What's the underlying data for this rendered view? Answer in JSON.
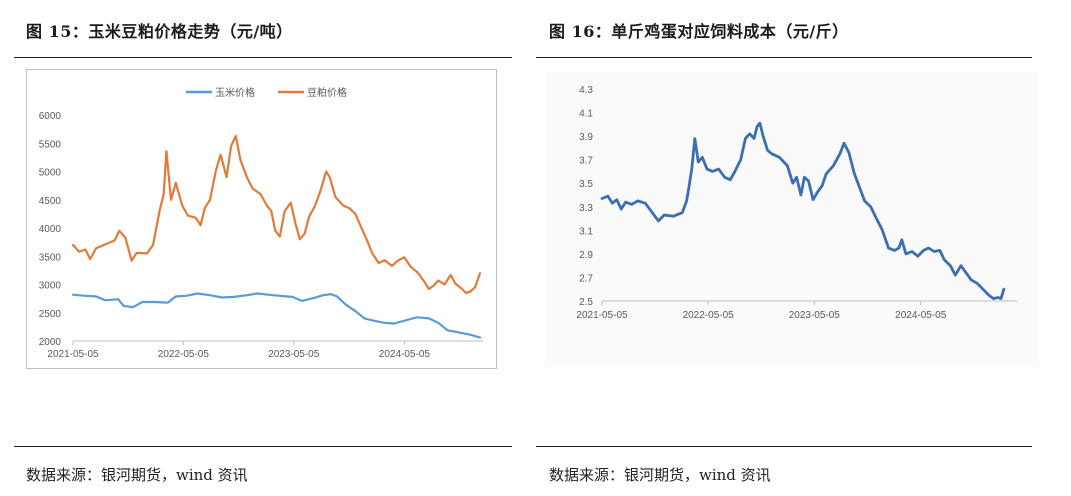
{
  "left": {
    "title": "图 15：玉米豆粕价格走势（元/吨）",
    "source": "数据来源：银河期货，wind 资讯"
  },
  "right": {
    "title": "图 16：单斤鸡蛋对应饲料成本（元/斤）",
    "source": "数据来源：银河期货，wind 资讯"
  },
  "colors": {
    "corn": "#5b9bd5",
    "soymeal": "#e07b39",
    "egg_cost": "#3c6eb0",
    "axis": "#bfbfbf",
    "tick_text": "#595959"
  },
  "chart_data": [
    {
      "type": "line",
      "legend_position": "top-center",
      "grid": false,
      "ylim": [
        2000,
        6000
      ],
      "y_ticks": [
        "2000",
        "2500",
        "3000",
        "3500",
        "4000",
        "4500",
        "5000",
        "5500",
        "6000"
      ],
      "x_ticks": [
        "2021-05-05",
        "2022-05-05",
        "2023-05-05",
        "2024-05-05"
      ],
      "x_range": [
        "2021-05-05",
        "2025-01-20"
      ],
      "series": [
        {
          "name": "玉米价格",
          "color": "#5b9bd5",
          "points": [
            [
              "2021-05-05",
              2820
            ],
            [
              "2021-06-15",
              2800
            ],
            [
              "2021-07-20",
              2790
            ],
            [
              "2021-08-20",
              2720
            ],
            [
              "2021-10-01",
              2740
            ],
            [
              "2021-10-20",
              2620
            ],
            [
              "2021-11-20",
              2600
            ],
            [
              "2021-12-20",
              2690
            ],
            [
              "2022-02-01",
              2690
            ],
            [
              "2022-03-15",
              2680
            ],
            [
              "2022-04-10",
              2790
            ],
            [
              "2022-05-15",
              2800
            ],
            [
              "2022-06-20",
              2840
            ],
            [
              "2022-08-01",
              2810
            ],
            [
              "2022-09-10",
              2770
            ],
            [
              "2022-10-20",
              2780
            ],
            [
              "2022-12-01",
              2810
            ],
            [
              "2023-01-05",
              2840
            ],
            [
              "2023-02-10",
              2820
            ],
            [
              "2023-03-20",
              2800
            ],
            [
              "2023-05-01",
              2780
            ],
            [
              "2023-06-01",
              2710
            ],
            [
              "2023-07-10",
              2760
            ],
            [
              "2023-08-10",
              2810
            ],
            [
              "2023-09-05",
              2830
            ],
            [
              "2023-09-25",
              2790
            ],
            [
              "2023-10-25",
              2640
            ],
            [
              "2023-11-25",
              2530
            ],
            [
              "2023-12-25",
              2400
            ],
            [
              "2024-01-25",
              2360
            ],
            [
              "2024-03-01",
              2320
            ],
            [
              "2024-04-01",
              2310
            ],
            [
              "2024-05-05",
              2360
            ],
            [
              "2024-06-15",
              2420
            ],
            [
              "2024-07-25",
              2400
            ],
            [
              "2024-08-25",
              2320
            ],
            [
              "2024-09-25",
              2190
            ],
            [
              "2024-10-25",
              2160
            ],
            [
              "2024-12-10",
              2110
            ],
            [
              "2025-01-10",
              2060
            ]
          ]
        },
        {
          "name": "豆粕价格",
          "color": "#e07b39",
          "points": [
            [
              "2021-05-05",
              3700
            ],
            [
              "2021-05-25",
              3580
            ],
            [
              "2021-06-15",
              3620
            ],
            [
              "2021-07-01",
              3450
            ],
            [
              "2021-07-20",
              3640
            ],
            [
              "2021-08-20",
              3710
            ],
            [
              "2021-09-20",
              3780
            ],
            [
              "2021-10-05",
              3950
            ],
            [
              "2021-10-25",
              3830
            ],
            [
              "2021-11-15",
              3420
            ],
            [
              "2021-12-01",
              3560
            ],
            [
              "2022-01-05",
              3550
            ],
            [
              "2022-01-25",
              3700
            ],
            [
              "2022-02-15",
              4300
            ],
            [
              "2022-03-01",
              4600
            ],
            [
              "2022-03-10",
              5360
            ],
            [
              "2022-03-25",
              4500
            ],
            [
              "2022-04-10",
              4800
            ],
            [
              "2022-05-01",
              4400
            ],
            [
              "2022-05-20",
              4220
            ],
            [
              "2022-06-15",
              4180
            ],
            [
              "2022-07-01",
              4050
            ],
            [
              "2022-07-15",
              4350
            ],
            [
              "2022-08-01",
              4500
            ],
            [
              "2022-08-20",
              5000
            ],
            [
              "2022-09-05",
              5300
            ],
            [
              "2022-09-25",
              4900
            ],
            [
              "2022-10-10",
              5450
            ],
            [
              "2022-10-25",
              5630
            ],
            [
              "2022-11-10",
              5200
            ],
            [
              "2022-12-01",
              4900
            ],
            [
              "2022-12-20",
              4700
            ],
            [
              "2023-01-15",
              4600
            ],
            [
              "2023-02-05",
              4400
            ],
            [
              "2023-02-20",
              4300
            ],
            [
              "2023-03-05",
              3950
            ],
            [
              "2023-03-20",
              3850
            ],
            [
              "2023-04-05",
              4300
            ],
            [
              "2023-04-25",
              4450
            ],
            [
              "2023-05-10",
              4100
            ],
            [
              "2023-05-25",
              3800
            ],
            [
              "2023-06-10",
              3900
            ],
            [
              "2023-06-25",
              4200
            ],
            [
              "2023-07-15",
              4400
            ],
            [
              "2023-08-01",
              4650
            ],
            [
              "2023-08-20",
              5000
            ],
            [
              "2023-09-01",
              4900
            ],
            [
              "2023-09-20",
              4550
            ],
            [
              "2023-10-15",
              4400
            ],
            [
              "2023-11-05",
              4350
            ],
            [
              "2023-11-25",
              4250
            ],
            [
              "2023-12-15",
              4000
            ],
            [
              "2024-01-01",
              3800
            ],
            [
              "2024-01-20",
              3550
            ],
            [
              "2024-02-10",
              3380
            ],
            [
              "2024-03-01",
              3430
            ],
            [
              "2024-03-25",
              3330
            ],
            [
              "2024-04-15",
              3430
            ],
            [
              "2024-05-05",
              3480
            ],
            [
              "2024-05-25",
              3320
            ],
            [
              "2024-06-20",
              3200
            ],
            [
              "2024-07-10",
              3050
            ],
            [
              "2024-07-25",
              2920
            ],
            [
              "2024-08-10",
              2980
            ],
            [
              "2024-08-25",
              3070
            ],
            [
              "2024-09-15",
              3000
            ],
            [
              "2024-10-05",
              3170
            ],
            [
              "2024-10-20",
              3020
            ],
            [
              "2024-11-10",
              2930
            ],
            [
              "2024-11-25",
              2850
            ],
            [
              "2024-12-10",
              2880
            ],
            [
              "2024-12-25",
              2950
            ],
            [
              "2025-01-10",
              3200
            ]
          ]
        }
      ]
    },
    {
      "type": "line",
      "legend_position": "none",
      "grid": false,
      "ylim": [
        2.5,
        4.3
      ],
      "y_ticks": [
        "2.5",
        "2.7",
        "2.9",
        "3.1",
        "3.3",
        "3.5",
        "3.7",
        "3.9",
        "4.1",
        "4.3"
      ],
      "x_ticks": [
        "2021-05-05",
        "2022-05-05",
        "2023-05-05",
        "2024-05-05"
      ],
      "x_range": [
        "2021-05-05",
        "2025-04-01"
      ],
      "series": [
        {
          "color": "#3c6eb0",
          "points": [
            [
              "2021-05-05",
              3.37
            ],
            [
              "2021-05-25",
              3.39
            ],
            [
              "2021-06-10",
              3.33
            ],
            [
              "2021-06-25",
              3.36
            ],
            [
              "2021-07-10",
              3.28
            ],
            [
              "2021-07-25",
              3.34
            ],
            [
              "2021-08-15",
              3.32
            ],
            [
              "2021-09-05",
              3.35
            ],
            [
              "2021-10-01",
              3.33
            ],
            [
              "2021-10-25",
              3.25
            ],
            [
              "2021-11-15",
              3.18
            ],
            [
              "2021-12-05",
              3.23
            ],
            [
              "2022-01-05",
              3.22
            ],
            [
              "2022-02-05",
              3.25
            ],
            [
              "2022-02-20",
              3.35
            ],
            [
              "2022-03-01",
              3.48
            ],
            [
              "2022-03-10",
              3.63
            ],
            [
              "2022-03-20",
              3.88
            ],
            [
              "2022-04-01",
              3.68
            ],
            [
              "2022-04-15",
              3.72
            ],
            [
              "2022-05-01",
              3.62
            ],
            [
              "2022-05-20",
              3.6
            ],
            [
              "2022-06-10",
              3.62
            ],
            [
              "2022-07-01",
              3.55
            ],
            [
              "2022-07-20",
              3.53
            ],
            [
              "2022-08-05",
              3.6
            ],
            [
              "2022-08-25",
              3.7
            ],
            [
              "2022-09-10",
              3.88
            ],
            [
              "2022-09-25",
              3.92
            ],
            [
              "2022-10-10",
              3.88
            ],
            [
              "2022-10-20",
              3.98
            ],
            [
              "2022-10-30",
              4.01
            ],
            [
              "2022-11-10",
              3.9
            ],
            [
              "2022-11-25",
              3.78
            ],
            [
              "2022-12-10",
              3.75
            ],
            [
              "2023-01-05",
              3.72
            ],
            [
              "2023-02-01",
              3.65
            ],
            [
              "2023-02-20",
              3.5
            ],
            [
              "2023-03-05",
              3.55
            ],
            [
              "2023-03-20",
              3.4
            ],
            [
              "2023-04-01",
              3.55
            ],
            [
              "2023-04-15",
              3.52
            ],
            [
              "2023-05-01",
              3.36
            ],
            [
              "2023-05-15",
              3.42
            ],
            [
              "2023-06-01",
              3.48
            ],
            [
              "2023-06-15",
              3.58
            ],
            [
              "2023-07-10",
              3.65
            ],
            [
              "2023-08-01",
              3.75
            ],
            [
              "2023-08-15",
              3.84
            ],
            [
              "2023-09-01",
              3.76
            ],
            [
              "2023-09-20",
              3.58
            ],
            [
              "2023-10-10",
              3.45
            ],
            [
              "2023-10-25",
              3.35
            ],
            [
              "2023-11-15",
              3.3
            ],
            [
              "2023-12-05",
              3.2
            ],
            [
              "2023-12-25",
              3.1
            ],
            [
              "2024-01-15",
              2.95
            ],
            [
              "2024-02-05",
              2.93
            ],
            [
              "2024-02-20",
              2.95
            ],
            [
              "2024-03-01",
              3.02
            ],
            [
              "2024-03-15",
              2.9
            ],
            [
              "2024-04-05",
              2.92
            ],
            [
              "2024-04-25",
              2.88
            ],
            [
              "2024-05-15",
              2.93
            ],
            [
              "2024-06-01",
              2.95
            ],
            [
              "2024-06-20",
              2.92
            ],
            [
              "2024-07-10",
              2.93
            ],
            [
              "2024-07-25",
              2.85
            ],
            [
              "2024-08-15",
              2.8
            ],
            [
              "2024-09-01",
              2.72
            ],
            [
              "2024-09-20",
              2.8
            ],
            [
              "2024-10-05",
              2.75
            ],
            [
              "2024-10-25",
              2.68
            ],
            [
              "2024-11-15",
              2.65
            ],
            [
              "2024-12-05",
              2.6
            ],
            [
              "2024-12-25",
              2.55
            ],
            [
              "2025-01-10",
              2.52
            ],
            [
              "2025-01-25",
              2.53
            ],
            [
              "2025-02-05",
              2.52
            ],
            [
              "2025-02-15",
              2.6
            ]
          ]
        }
      ]
    }
  ]
}
